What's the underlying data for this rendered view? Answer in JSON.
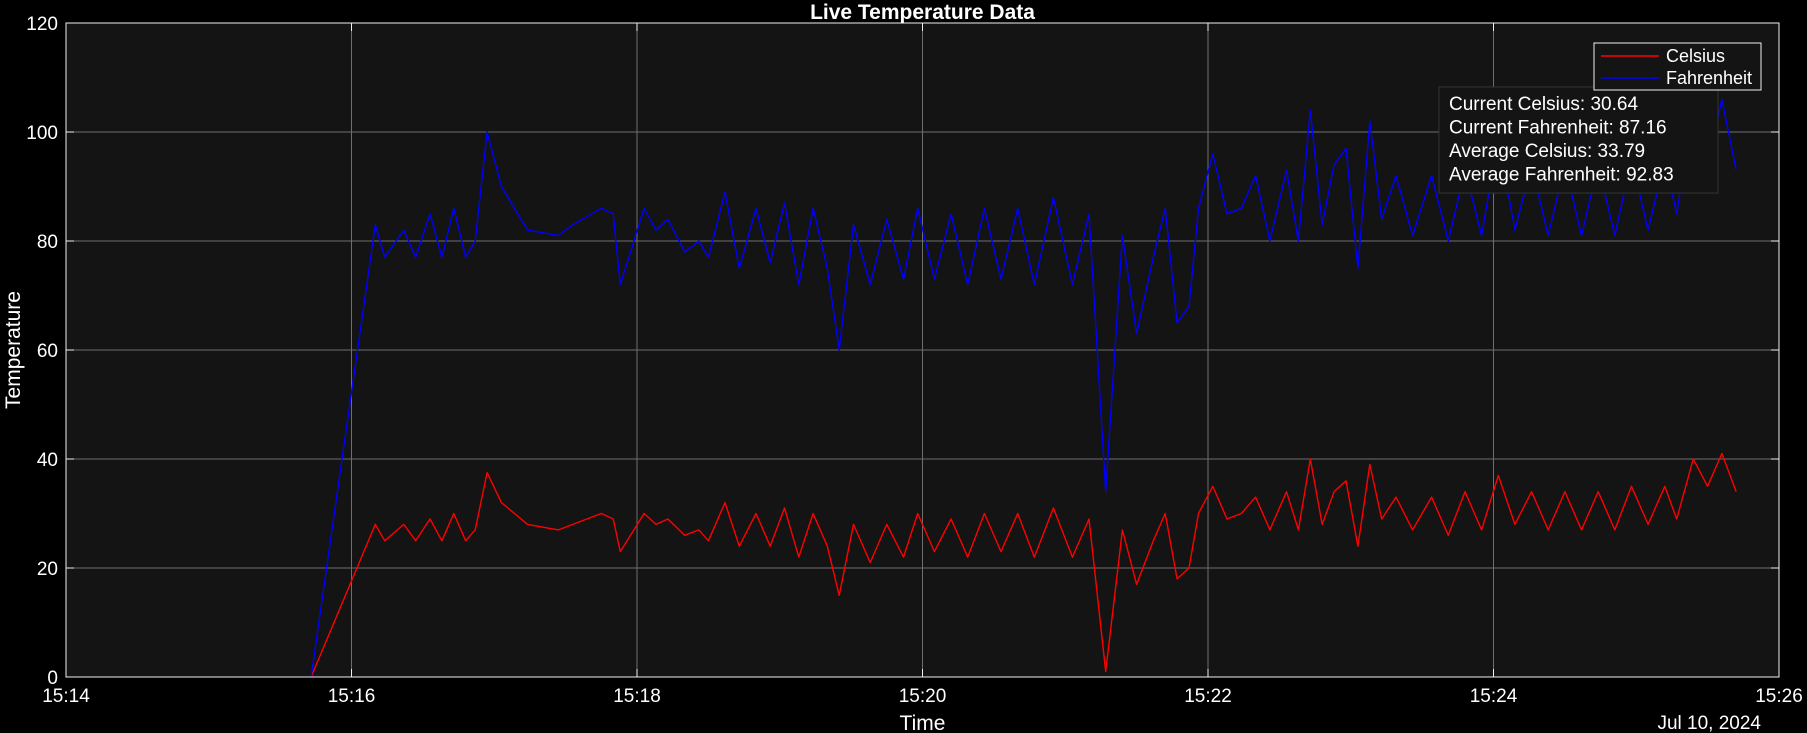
{
  "chart_data": {
    "type": "line",
    "title": "Live Temperature Data",
    "xlabel": "Time",
    "ylabel": "Temperature",
    "date_label": "Jul 10, 2024",
    "xlim": [
      "15:14",
      "15:26"
    ],
    "ylim": [
      0,
      120
    ],
    "x_ticks": [
      "15:14",
      "15:16",
      "15:18",
      "15:20",
      "15:22",
      "15:24",
      "15:26"
    ],
    "y_ticks": [
      0,
      20,
      40,
      60,
      80,
      100,
      120
    ],
    "grid": true,
    "legend_position": "top-right",
    "background_color": "#141414",
    "axis_color": "#f0f0f0",
    "grid_color": "#6e6e6e",
    "series": [
      {
        "name": "Celsius",
        "color": "#ff0000",
        "points": [
          [
            "15:15:43",
            0
          ],
          [
            "15:16:10",
            28
          ],
          [
            "15:16:14",
            25
          ],
          [
            "15:16:22",
            28
          ],
          [
            "15:16:27",
            25
          ],
          [
            "15:16:33",
            29
          ],
          [
            "15:16:38",
            25
          ],
          [
            "15:16:43",
            30
          ],
          [
            "15:16:48",
            25
          ],
          [
            "15:16:52",
            27
          ],
          [
            "15:16:57",
            37.5
          ],
          [
            "15:17:03",
            32
          ],
          [
            "15:17:14",
            28
          ],
          [
            "15:17:27",
            27
          ],
          [
            "15:17:33",
            28
          ],
          [
            "15:17:45",
            30
          ],
          [
            "15:17:50",
            29
          ],
          [
            "15:17:53",
            23
          ],
          [
            "15:18:03",
            30
          ],
          [
            "15:18:08",
            28
          ],
          [
            "15:18:13",
            29
          ],
          [
            "15:18:20",
            26
          ],
          [
            "15:18:26",
            27
          ],
          [
            "15:18:30",
            25
          ],
          [
            "15:18:37",
            32
          ],
          [
            "15:18:43",
            24
          ],
          [
            "15:18:50",
            30
          ],
          [
            "15:18:56",
            24
          ],
          [
            "15:19:02",
            31
          ],
          [
            "15:19:08",
            22
          ],
          [
            "15:19:14",
            30
          ],
          [
            "15:19:20",
            24
          ],
          [
            "15:19:25",
            15
          ],
          [
            "15:19:31",
            28
          ],
          [
            "15:19:38",
            21
          ],
          [
            "15:19:45",
            28
          ],
          [
            "15:19:52",
            22
          ],
          [
            "15:19:58",
            30
          ],
          [
            "15:20:05",
            23
          ],
          [
            "15:20:12",
            29
          ],
          [
            "15:20:19",
            22
          ],
          [
            "15:20:26",
            30
          ],
          [
            "15:20:33",
            23
          ],
          [
            "15:20:40",
            30
          ],
          [
            "15:20:47",
            22
          ],
          [
            "15:20:55",
            31
          ],
          [
            "15:21:03",
            22
          ],
          [
            "15:21:10",
            29
          ],
          [
            "15:21:17",
            1
          ],
          [
            "15:21:24",
            27
          ],
          [
            "15:21:30",
            17
          ],
          [
            "15:21:37",
            25
          ],
          [
            "15:21:42",
            30
          ],
          [
            "15:21:47",
            18
          ],
          [
            "15:21:52",
            20
          ],
          [
            "15:21:56",
            30
          ],
          [
            "15:22:02",
            35
          ],
          [
            "15:22:08",
            29
          ],
          [
            "15:22:14",
            30
          ],
          [
            "15:22:20",
            33
          ],
          [
            "15:22:26",
            27
          ],
          [
            "15:22:33",
            34
          ],
          [
            "15:22:38",
            27
          ],
          [
            "15:22:43",
            40
          ],
          [
            "15:22:48",
            28
          ],
          [
            "15:22:53",
            34
          ],
          [
            "15:22:58",
            36
          ],
          [
            "15:23:03",
            24
          ],
          [
            "15:23:08",
            39
          ],
          [
            "15:23:13",
            29
          ],
          [
            "15:23:19",
            33
          ],
          [
            "15:23:26",
            27
          ],
          [
            "15:23:34",
            33
          ],
          [
            "15:23:41",
            26
          ],
          [
            "15:23:48",
            34
          ],
          [
            "15:23:55",
            27
          ],
          [
            "15:24:02",
            37
          ],
          [
            "15:24:09",
            28
          ],
          [
            "15:24:16",
            34
          ],
          [
            "15:24:23",
            27
          ],
          [
            "15:24:30",
            34
          ],
          [
            "15:24:37",
            27
          ],
          [
            "15:24:44",
            34
          ],
          [
            "15:24:51",
            27
          ],
          [
            "15:24:58",
            35
          ],
          [
            "15:25:05",
            28
          ],
          [
            "15:25:12",
            35
          ],
          [
            "15:25:17",
            29
          ],
          [
            "15:25:24",
            40
          ],
          [
            "15:25:30",
            35
          ],
          [
            "15:25:36",
            41
          ],
          [
            "15:25:42",
            34
          ]
        ]
      },
      {
        "name": "Fahrenheit",
        "color": "#0000ff",
        "points": [
          [
            "15:15:43",
            0
          ],
          [
            "15:16:10",
            83
          ],
          [
            "15:16:14",
            77
          ],
          [
            "15:16:22",
            82
          ],
          [
            "15:16:27",
            77
          ],
          [
            "15:16:33",
            85
          ],
          [
            "15:16:38",
            77
          ],
          [
            "15:16:43",
            86
          ],
          [
            "15:16:48",
            77
          ],
          [
            "15:16:52",
            80
          ],
          [
            "15:16:57",
            100
          ],
          [
            "15:17:03",
            90
          ],
          [
            "15:17:14",
            82
          ],
          [
            "15:17:27",
            81
          ],
          [
            "15:17:33",
            83
          ],
          [
            "15:17:45",
            86
          ],
          [
            "15:17:50",
            85
          ],
          [
            "15:17:53",
            72
          ],
          [
            "15:18:03",
            86
          ],
          [
            "15:18:08",
            82
          ],
          [
            "15:18:13",
            84
          ],
          [
            "15:18:20",
            78
          ],
          [
            "15:18:26",
            80
          ],
          [
            "15:18:30",
            77
          ],
          [
            "15:18:37",
            89
          ],
          [
            "15:18:43",
            75
          ],
          [
            "15:18:50",
            86
          ],
          [
            "15:18:56",
            76
          ],
          [
            "15:19:02",
            87
          ],
          [
            "15:19:08",
            72
          ],
          [
            "15:19:14",
            86
          ],
          [
            "15:19:20",
            75
          ],
          [
            "15:19:25",
            60
          ],
          [
            "15:19:31",
            83
          ],
          [
            "15:19:38",
            72
          ],
          [
            "15:19:45",
            84
          ],
          [
            "15:19:52",
            73
          ],
          [
            "15:19:58",
            86
          ],
          [
            "15:20:05",
            73
          ],
          [
            "15:20:12",
            85
          ],
          [
            "15:20:19",
            72
          ],
          [
            "15:20:26",
            86
          ],
          [
            "15:20:33",
            73
          ],
          [
            "15:20:40",
            86
          ],
          [
            "15:20:47",
            72
          ],
          [
            "15:20:55",
            88
          ],
          [
            "15:21:03",
            72
          ],
          [
            "15:21:10",
            85
          ],
          [
            "15:21:17",
            34
          ],
          [
            "15:21:24",
            81
          ],
          [
            "15:21:30",
            63
          ],
          [
            "15:21:37",
            77
          ],
          [
            "15:21:42",
            86
          ],
          [
            "15:21:47",
            65
          ],
          [
            "15:21:52",
            68
          ],
          [
            "15:21:56",
            86
          ],
          [
            "15:22:02",
            96
          ],
          [
            "15:22:08",
            85
          ],
          [
            "15:22:14",
            86
          ],
          [
            "15:22:20",
            92
          ],
          [
            "15:22:26",
            80
          ],
          [
            "15:22:33",
            93
          ],
          [
            "15:22:38",
            80
          ],
          [
            "15:22:43",
            104
          ],
          [
            "15:22:48",
            83
          ],
          [
            "15:22:53",
            94
          ],
          [
            "15:22:58",
            97
          ],
          [
            "15:23:03",
            75
          ],
          [
            "15:23:08",
            102
          ],
          [
            "15:23:13",
            84
          ],
          [
            "15:23:19",
            92
          ],
          [
            "15:23:26",
            81
          ],
          [
            "15:23:34",
            92
          ],
          [
            "15:23:41",
            80
          ],
          [
            "15:23:48",
            93
          ],
          [
            "15:23:55",
            81
          ],
          [
            "15:24:02",
            99
          ],
          [
            "15:24:09",
            82
          ],
          [
            "15:24:16",
            94
          ],
          [
            "15:24:23",
            81
          ],
          [
            "15:24:30",
            94
          ],
          [
            "15:24:37",
            81
          ],
          [
            "15:24:44",
            94
          ],
          [
            "15:24:51",
            81
          ],
          [
            "15:24:58",
            95
          ],
          [
            "15:25:05",
            82
          ],
          [
            "15:25:12",
            95
          ],
          [
            "15:25:17",
            85
          ],
          [
            "15:25:24",
            104
          ],
          [
            "15:25:30",
            94
          ],
          [
            "15:25:36",
            106
          ],
          [
            "15:25:42",
            93
          ]
        ]
      }
    ],
    "stats": [
      "Current Celsius: 30.64",
      "Current Fahrenheit: 87.16",
      "Average Celsius: 33.79",
      "Average Fahrenheit: 92.83"
    ]
  }
}
